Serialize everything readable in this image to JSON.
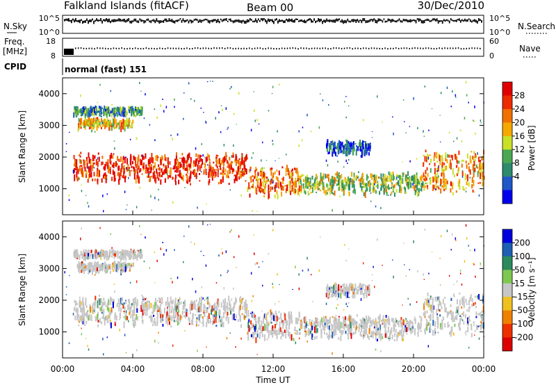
{
  "header": {
    "title": "Falkland Islands (fitACF)",
    "beam": "Beam 00",
    "date": "30/Dec/2010"
  },
  "top_panels": {
    "nsky_label": "N.Sky",
    "nsky_ticks": [
      "10^5",
      "10^0"
    ],
    "nsearch_label": "N.Search",
    "nsearch_ticks": [
      "10^5",
      "10^0"
    ],
    "freq_label_1": "Freq.",
    "freq_label_2": "[MHz]",
    "freq_ticks": [
      "18",
      "8"
    ],
    "nave_label": "Nave",
    "nave_ticks": [
      "60",
      "0"
    ],
    "cpid_label": "CPID",
    "cpid_text": "normal (fast) 151"
  },
  "power_panel": {
    "ylabel": "Slant Range [km]",
    "colorbar_label": "Power [dB]",
    "colorbar_ticks": [
      "28",
      "24",
      "20",
      "16",
      "12",
      "8",
      "4"
    ],
    "colors": [
      "#0000ee",
      "#1f57c8",
      "#2d8a6c",
      "#4aa852",
      "#c9e028",
      "#f5a800",
      "#f07000",
      "#ee2a00",
      "#e00000"
    ]
  },
  "velocity_panel": {
    "ylabel": "Slant Range [km]",
    "colorbar_label": "Velocity [m s⁻¹]",
    "colorbar_ticks": [
      "200",
      "100",
      "50",
      "15",
      "-15",
      "-50",
      "-100",
      "-200"
    ],
    "colors": [
      "#0000dd",
      "#1e5fb4",
      "#2a8a5c",
      "#7ec850",
      "#c6c6c6",
      "#f0c020",
      "#f08000",
      "#ee3000",
      "#dd0000"
    ]
  },
  "xaxis": {
    "label": "Time UT",
    "ticks": [
      "00:00",
      "04:00",
      "08:00",
      "12:00",
      "16:00",
      "20:00",
      "00:00"
    ]
  },
  "chart_data": {
    "type": "heatmap",
    "title": "Falkland Islands (fitACF)",
    "subtitle": "Beam 00",
    "date": "30/Dec/2010",
    "xlabel": "Time UT",
    "ylabel": "Slant Range [km]",
    "x_range_hours": [
      0,
      24
    ],
    "y_range_km": [
      180,
      4500
    ],
    "y_ticks": [
      1000,
      2000,
      3000,
      4000
    ],
    "power_colorbar": {
      "label": "Power [dB]",
      "ticks": [
        28,
        24,
        20,
        16,
        12,
        8,
        4
      ]
    },
    "velocity_colorbar": {
      "label": "Velocity [m s⁻¹]",
      "ticks": [
        200,
        100,
        50,
        15,
        -15,
        -50,
        -100,
        -200
      ]
    },
    "cpid": "normal (fast) 151",
    "scatter_bands": [
      {
        "t_start": 0.6,
        "t_end": 10.5,
        "range_bottom_km": 1200,
        "range_top_km": 2100,
        "power_db": 26,
        "velocity_ms": 0
      },
      {
        "t_start": 10.5,
        "t_end": 13.5,
        "range_bottom_km": 750,
        "range_top_km": 1700,
        "power_db": 22,
        "velocity_ms": -5
      },
      {
        "t_start": 13.5,
        "t_end": 20.5,
        "range_bottom_km": 800,
        "range_top_km": 1500,
        "power_db": 14,
        "velocity_ms": -5
      },
      {
        "t_start": 20.5,
        "t_end": 24.0,
        "range_bottom_km": 900,
        "range_top_km": 2200,
        "power_db": 20,
        "velocity_ms": -10
      },
      {
        "t_start": 0.8,
        "t_end": 4.0,
        "range_bottom_km": 2900,
        "range_top_km": 3200,
        "power_db": 18,
        "velocity_ms": -20
      },
      {
        "t_start": 0.6,
        "t_end": 4.5,
        "range_bottom_km": 3350,
        "range_top_km": 3550,
        "power_db": 10,
        "velocity_ms": 5
      },
      {
        "t_start": 15.0,
        "t_end": 17.5,
        "range_bottom_km": 2100,
        "range_top_km": 2500,
        "power_db": 6,
        "velocity_ms": 20
      }
    ]
  }
}
